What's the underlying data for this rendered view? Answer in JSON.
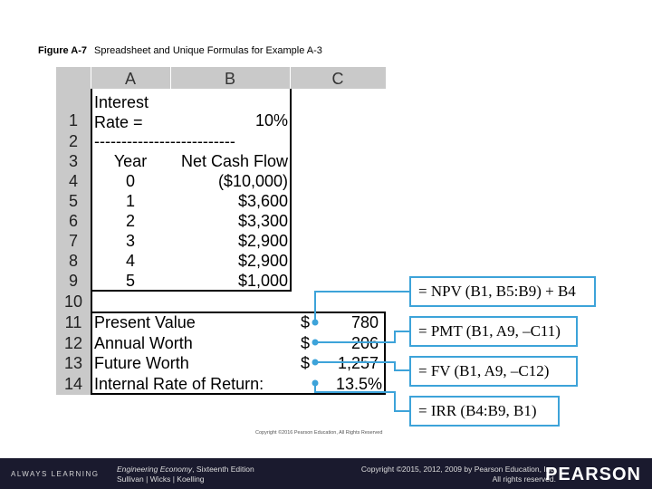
{
  "figure": {
    "label": "Figure A-7",
    "caption": "Spreadsheet and Unique Formulas for Example A-3"
  },
  "spreadsheet": {
    "columns": [
      "A",
      "B",
      "C"
    ],
    "rows": [
      {
        "num": "1",
        "a": "Interest\nRate =",
        "b": "10%",
        "c": ""
      },
      {
        "num": "2",
        "a": "--------------------------",
        "b": "",
        "c": ""
      },
      {
        "num": "3",
        "a": "Year",
        "b": "Net Cash Flow",
        "c": ""
      },
      {
        "num": "4",
        "a": "0",
        "b": "($10,000)",
        "c": ""
      },
      {
        "num": "5",
        "a": "1",
        "b": "$3,600",
        "c": ""
      },
      {
        "num": "6",
        "a": "2",
        "b": "$3,300",
        "c": ""
      },
      {
        "num": "7",
        "a": "3",
        "b": "$2,900",
        "c": ""
      },
      {
        "num": "8",
        "a": "4",
        "b": "$2,900",
        "c": ""
      },
      {
        "num": "9",
        "a": "5",
        "b": "$1,000",
        "c": ""
      },
      {
        "num": "10",
        "a": "",
        "b": "",
        "c": ""
      },
      {
        "num": "11",
        "a": "Present Value",
        "b": "$",
        "c": "780"
      },
      {
        "num": "12",
        "a": "Annual Worth",
        "b": "$",
        "c": "206"
      },
      {
        "num": "13",
        "a": "Future Worth",
        "b": "$",
        "c": "1,257"
      },
      {
        "num": "14",
        "a": "Internal Rate of Return:",
        "b": "",
        "c": "13.5%"
      }
    ]
  },
  "formulas": [
    "= NPV (B1, B5:B9) + B4",
    "= PMT (B1, A9, –C11)",
    "= FV (B1, A9, –C12)",
    "= IRR (B4:B9, B1)"
  ],
  "credit": "Copyright ©2016 Pearson Education, All Rights Reserved",
  "footer": {
    "tagline": "ALWAYS LEARNING",
    "book_title": "Engineering Economy",
    "book_edition": ", Sixteenth Edition",
    "authors": "Sullivan | Wicks | Koelling",
    "copyright_1": "Copyright ©2015, 2012, 2009 by Pearson Education, Inc.",
    "copyright_2": "All rights reserved.",
    "brand": "PEARSON"
  },
  "colors": {
    "header_gray": "#c9c9c9",
    "formula_border": "#3da3d9",
    "connector": "#3da3d9",
    "footer_bg": "#1a1a2e"
  }
}
